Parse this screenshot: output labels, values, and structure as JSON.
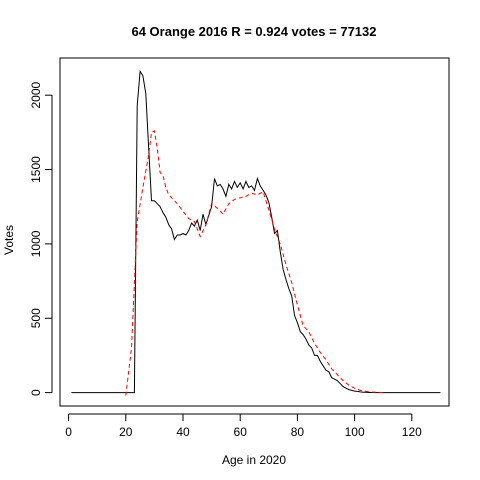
{
  "chart_data": {
    "type": "line",
    "title": "64 Orange 2016 R = 0.924 votes = 77132",
    "xlabel": "Age in 2020",
    "ylabel": "Votes",
    "xlim": [
      -3,
      133
    ],
    "ylim": [
      -90,
      2250
    ],
    "xticks": [
      0,
      20,
      40,
      60,
      80,
      100,
      120
    ],
    "yticks": [
      0,
      500,
      1000,
      1500,
      2000
    ],
    "grid": false,
    "legend": "none",
    "series": [
      {
        "color": "#000000",
        "dash": "solid",
        "x": [
          1,
          23,
          24,
          25,
          26,
          27,
          28,
          29,
          30,
          31,
          32,
          33,
          34,
          35,
          36,
          37,
          38,
          39,
          40,
          41,
          42,
          43,
          44,
          45,
          46,
          47,
          48,
          49,
          50,
          51,
          52,
          53,
          54,
          55,
          56,
          57,
          58,
          59,
          60,
          61,
          62,
          63,
          64,
          65,
          66,
          67,
          68,
          69,
          70,
          71,
          72,
          73,
          74,
          75,
          76,
          77,
          78,
          79,
          80,
          81,
          82,
          83,
          84,
          85,
          86,
          87,
          88,
          89,
          90,
          91,
          92,
          93,
          94,
          95,
          96,
          97,
          98,
          99,
          100,
          101,
          102,
          103,
          104,
          105,
          106,
          108,
          110,
          115,
          120,
          125,
          130
        ],
        "y": [
          0,
          0,
          1930,
          2160,
          2130,
          2010,
          1640,
          1290,
          1290,
          1270,
          1250,
          1210,
          1180,
          1130,
          1100,
          1030,
          1060,
          1060,
          1070,
          1060,
          1090,
          1140,
          1120,
          1160,
          1090,
          1200,
          1130,
          1190,
          1250,
          1440,
          1390,
          1400,
          1370,
          1320,
          1400,
          1370,
          1420,
          1380,
          1410,
          1370,
          1420,
          1380,
          1390,
          1360,
          1440,
          1390,
          1360,
          1330,
          1280,
          1180,
          1070,
          1090,
          950,
          830,
          760,
          700,
          650,
          520,
          470,
          410,
          390,
          360,
          320,
          300,
          250,
          250,
          210,
          180,
          150,
          140,
          100,
          90,
          80,
          60,
          40,
          30,
          20,
          15,
          10,
          8,
          5,
          3,
          2,
          1,
          1,
          0,
          0,
          0,
          0,
          0,
          0
        ]
      },
      {
        "color": "#ff0000",
        "dash": "dashed",
        "x": [
          20,
          22,
          24,
          26,
          28,
          29,
          30,
          31,
          32,
          33,
          34,
          35,
          36,
          38,
          40,
          42,
          44,
          46,
          48,
          50,
          52,
          54,
          56,
          58,
          60,
          62,
          64,
          66,
          68,
          70,
          72,
          74,
          76,
          78,
          80,
          82,
          84,
          86,
          88,
          90,
          92,
          94,
          96,
          98,
          100,
          102,
          104,
          106,
          108,
          110
        ],
        "y": [
          -20,
          300,
          1150,
          1380,
          1600,
          1750,
          1760,
          1640,
          1480,
          1460,
          1380,
          1330,
          1310,
          1270,
          1220,
          1170,
          1150,
          1050,
          1130,
          1270,
          1240,
          1200,
          1270,
          1300,
          1310,
          1320,
          1340,
          1330,
          1350,
          1230,
          1100,
          1000,
          860,
          740,
          590,
          450,
          410,
          330,
          270,
          220,
          160,
          120,
          80,
          50,
          30,
          15,
          8,
          4,
          2,
          0
        ]
      }
    ]
  }
}
